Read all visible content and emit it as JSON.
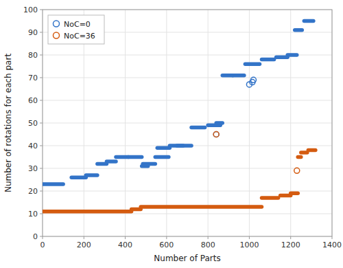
{
  "chart_data": {
    "type": "segment",
    "xlabel": "Number of Parts",
    "ylabel": "Number of rotations for each part",
    "xlim": [
      0,
      1400
    ],
    "ylim": [
      0,
      100
    ],
    "xticks": [
      0,
      200,
      400,
      600,
      800,
      1000,
      1200,
      1400
    ],
    "yticks": [
      0,
      10,
      20,
      30,
      40,
      50,
      60,
      70,
      80,
      90,
      100
    ],
    "grid": true,
    "legend": "upper-left",
    "series": [
      {
        "name": "NoC=0",
        "color": "#3374C8",
        "marker": "open-circle",
        "x_start": [
          0,
          140,
          210,
          265,
          310,
          355,
          415,
          480,
          485,
          545,
          555,
          615,
          650,
          720,
          800,
          840,
          870,
          920,
          980,
          1060,
          1130,
          1185,
          1220,
          1265
        ],
        "x_end": [
          100,
          210,
          265,
          310,
          355,
          415,
          480,
          510,
          545,
          610,
          615,
          680,
          720,
          785,
          860,
          870,
          920,
          975,
          1050,
          1120,
          1185,
          1230,
          1255,
          1310
        ],
        "values": [
          23,
          26,
          27,
          32,
          33,
          35,
          35,
          31,
          32,
          35,
          39,
          40,
          40,
          48,
          49,
          50,
          71,
          71,
          76,
          78,
          79,
          80,
          91,
          95
        ],
        "point_x": [
          840,
          1000,
          1015,
          1020
        ],
        "point_values": [
          45,
          67,
          68,
          69
        ]
      },
      {
        "name": "NoC=36",
        "color": "#D45B10",
        "marker": "open-circle",
        "x_start": [
          0,
          430,
          475,
          1060,
          1150,
          1200,
          1235,
          1250,
          1285
        ],
        "x_end": [
          430,
          475,
          1060,
          1140,
          1200,
          1235,
          1250,
          1280,
          1320
        ],
        "values": [
          11,
          12,
          13,
          17,
          18,
          19,
          35,
          37,
          38
        ],
        "point_x": [
          840,
          1230
        ],
        "point_values": [
          45,
          29
        ]
      }
    ]
  }
}
